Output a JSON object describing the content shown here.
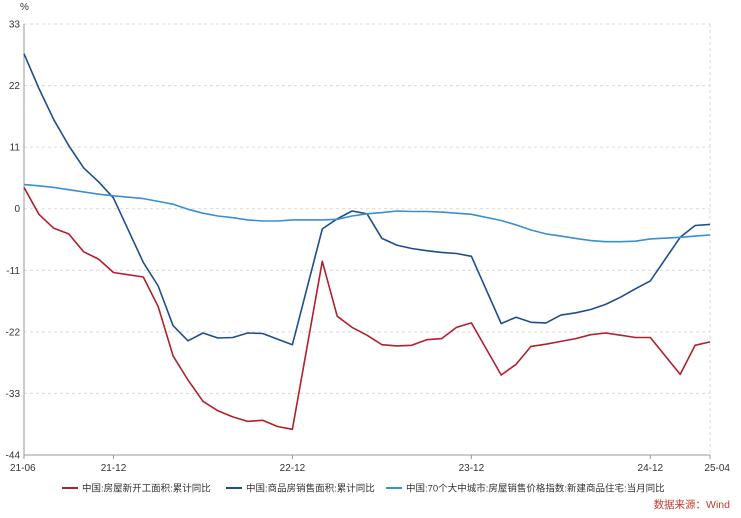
{
  "chart_data": {
    "type": "line",
    "title": "",
    "unit_label": "%",
    "source": "数据来源：Wind",
    "grid": true,
    "legend_position": "bottom",
    "ylim": [
      -44,
      33
    ],
    "y_ticks": [
      "33",
      "22",
      "11",
      "0",
      "-11",
      "-22",
      "-33",
      "-44"
    ],
    "x_ticks": [
      "21-06",
      "21-12",
      "22-12",
      "23-12",
      "24-12",
      "25-04"
    ],
    "x": [
      "2021-06",
      "2021-07",
      "2021-08",
      "2021-09",
      "2021-10",
      "2021-11",
      "2021-12",
      "2022-02",
      "2022-03",
      "2022-04",
      "2022-05",
      "2022-06",
      "2022-07",
      "2022-08",
      "2022-09",
      "2022-10",
      "2022-11",
      "2022-12",
      "2023-02",
      "2023-03",
      "2023-04",
      "2023-05",
      "2023-06",
      "2023-07",
      "2023-08",
      "2023-09",
      "2023-10",
      "2023-11",
      "2023-12",
      "2024-02",
      "2024-03",
      "2024-04",
      "2024-05",
      "2024-06",
      "2024-07",
      "2024-08",
      "2024-09",
      "2024-10",
      "2024-11",
      "2024-12",
      "2025-02",
      "2025-03",
      "2025-04"
    ],
    "series": [
      {
        "name": "中国:房屋新开工面积:累计同比",
        "color": "#b0202f",
        "values": [
          3.8,
          -1.0,
          -3.5,
          -4.5,
          -7.7,
          -9.0,
          -11.4,
          -12.2,
          -17.5,
          -26.3,
          -30.6,
          -34.4,
          -36.1,
          -37.2,
          -38.0,
          -37.8,
          -38.9,
          -39.4,
          -9.4,
          -19.2,
          -21.2,
          -22.6,
          -24.3,
          -24.5,
          -24.4,
          -23.4,
          -23.2,
          -21.2,
          -20.4,
          -29.7,
          -27.8,
          -24.6,
          -24.2,
          -23.7,
          -23.2,
          -22.5,
          -22.2,
          -22.6,
          -23.0,
          -23.0,
          -29.6,
          -24.4,
          -23.8
        ]
      },
      {
        "name": "中国:商品房销售面积:累计同比",
        "color": "#1f4e8c",
        "values": [
          27.7,
          21.5,
          15.9,
          11.3,
          7.3,
          4.8,
          1.9,
          -9.6,
          -13.8,
          -20.9,
          -23.6,
          -22.2,
          -23.1,
          -23.0,
          -22.2,
          -22.3,
          -23.3,
          -24.3,
          -3.6,
          -1.8,
          -0.4,
          -0.9,
          -5.3,
          -6.5,
          -7.1,
          -7.5,
          -7.8,
          -8.0,
          -8.5,
          -20.5,
          -19.4,
          -20.3,
          -20.4,
          -19.0,
          -18.6,
          -18.0,
          -17.1,
          -15.8,
          -14.3,
          -12.9,
          -5.1,
          -3.0,
          -2.8
        ]
      },
      {
        "name": "中国:70个大中城市:房屋销售价格指数:新建商品住宅:当月同比",
        "color": "#3a8fd1",
        "values": [
          4.3,
          4.1,
          3.8,
          3.4,
          3.0,
          2.6,
          2.3,
          1.8,
          1.3,
          0.8,
          -0.1,
          -0.8,
          -1.3,
          -1.6,
          -2.0,
          -2.2,
          -2.2,
          -2.0,
          -2.0,
          -1.9,
          -1.3,
          -0.9,
          -0.7,
          -0.4,
          -0.5,
          -0.5,
          -0.6,
          -0.8,
          -1.0,
          -2.1,
          -2.9,
          -3.8,
          -4.5,
          -4.9,
          -5.3,
          -5.7,
          -5.9,
          -5.9,
          -5.8,
          -5.4,
          -5.1,
          -4.9,
          -4.7
        ]
      }
    ]
  }
}
